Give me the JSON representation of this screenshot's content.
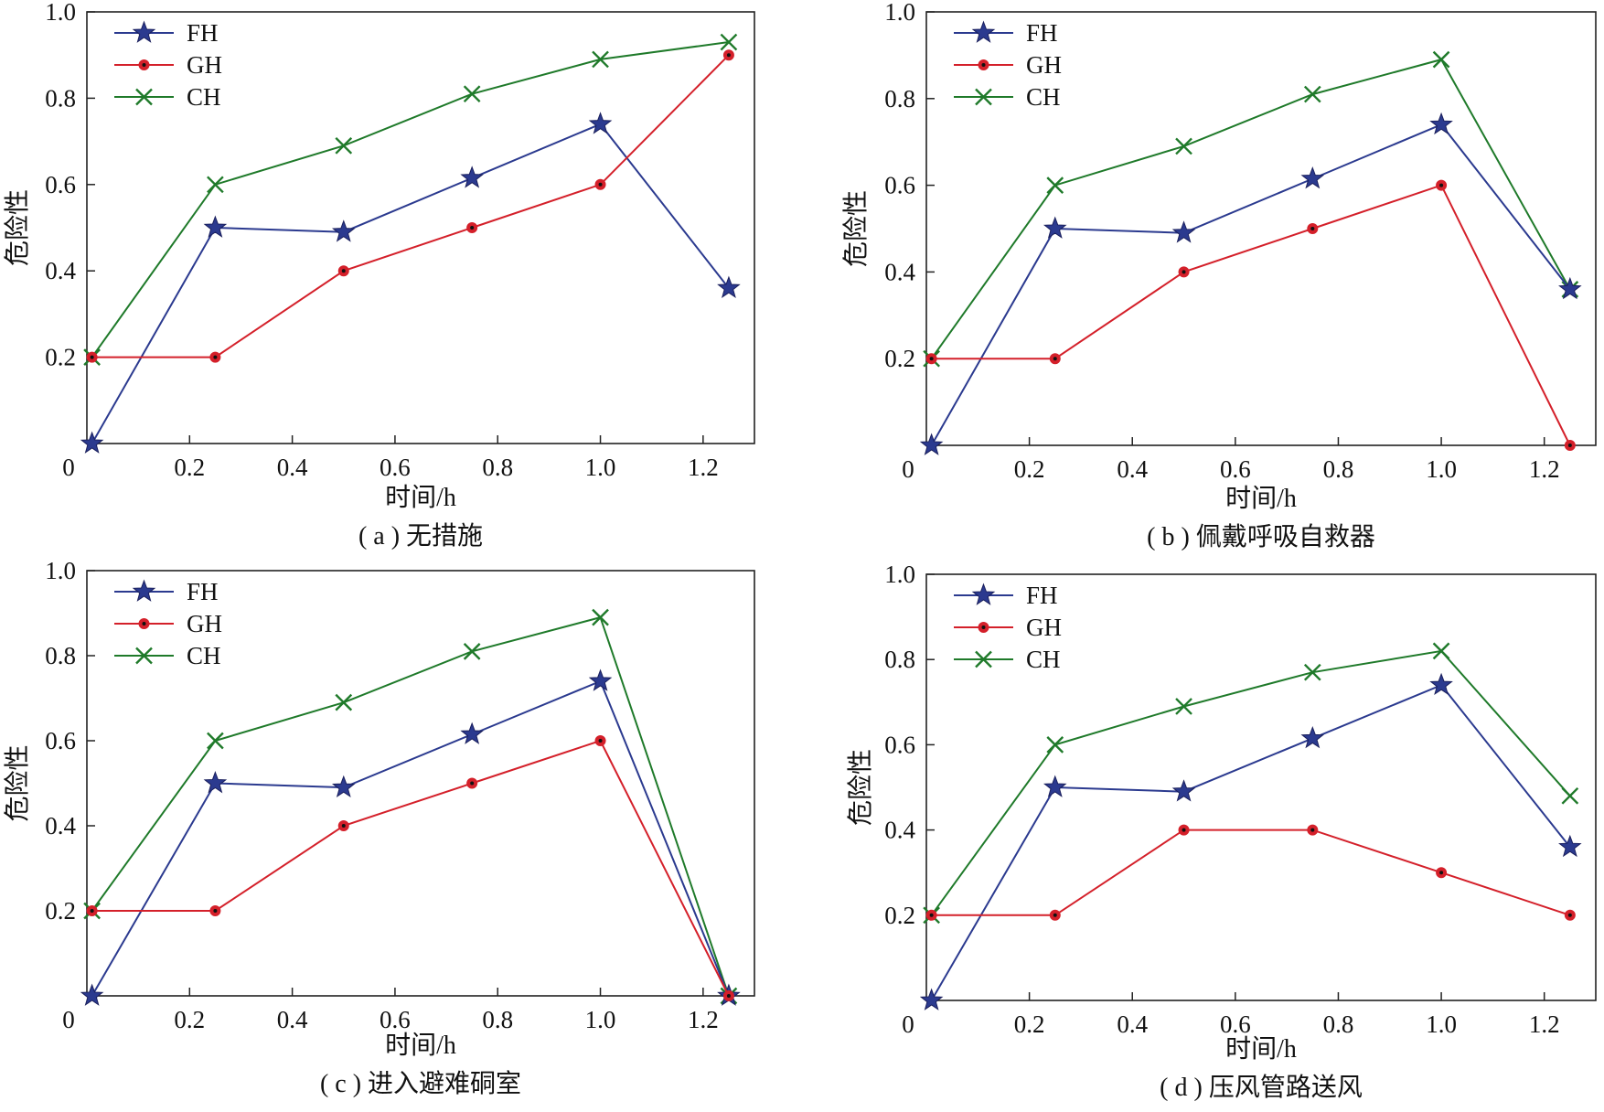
{
  "chart_data": [
    {
      "type": "line",
      "caption": "( a ) 无措施",
      "xlabel": "时间/h",
      "ylabel": "危险性",
      "xlim": [
        0,
        1.3
      ],
      "ylim": [
        0,
        1.0
      ],
      "xticks": [
        "0",
        "0.2",
        "0.4",
        "0.6",
        "0.8",
        "1.0",
        "1.2"
      ],
      "yticks": [
        "0.2",
        "0.4",
        "0.6",
        "0.8",
        "1.0"
      ],
      "legend_position": "top-left",
      "x": [
        0,
        0.25,
        0.5,
        0.75,
        1.0,
        1.25
      ],
      "series": [
        {
          "name": "FH",
          "values": [
            0.0,
            0.5,
            0.49,
            0.615,
            0.74,
            0.36
          ]
        },
        {
          "name": "GH",
          "values": [
            0.2,
            0.2,
            0.4,
            0.5,
            0.6,
            0.9
          ]
        },
        {
          "name": "CH",
          "values": [
            0.2,
            0.6,
            0.69,
            0.81,
            0.89,
            0.93
          ]
        }
      ]
    },
    {
      "type": "line",
      "caption": "( b ) 佩戴呼吸自救器",
      "xlabel": "时间/h",
      "ylabel": "危险性",
      "xlim": [
        0,
        1.3
      ],
      "ylim": [
        0,
        1.0
      ],
      "xticks": [
        "0",
        "0.2",
        "0.4",
        "0.6",
        "0.8",
        "1.0",
        "1.2"
      ],
      "yticks": [
        "0.2",
        "0.4",
        "0.6",
        "0.8",
        "1.0"
      ],
      "legend_position": "top-left",
      "x": [
        0,
        0.25,
        0.5,
        0.75,
        1.0,
        1.25
      ],
      "series": [
        {
          "name": "FH",
          "values": [
            0.0,
            0.5,
            0.49,
            0.615,
            0.74,
            0.36
          ]
        },
        {
          "name": "GH",
          "values": [
            0.2,
            0.2,
            0.4,
            0.5,
            0.6,
            0.0
          ]
        },
        {
          "name": "CH",
          "values": [
            0.2,
            0.6,
            0.69,
            0.81,
            0.89,
            0.36
          ]
        }
      ]
    },
    {
      "type": "line",
      "caption": "( c ) 进入避难硐室",
      "xlabel": "时间/h",
      "ylabel": "危险性",
      "xlim": [
        0,
        1.3
      ],
      "ylim": [
        0,
        1.0
      ],
      "xticks": [
        "0",
        "0.2",
        "0.4",
        "0.6",
        "0.8",
        "1.0",
        "1.2"
      ],
      "yticks": [
        "0.2",
        "0.4",
        "0.6",
        "0.8",
        "1.0"
      ],
      "legend_position": "top-left",
      "x": [
        0,
        0.25,
        0.5,
        0.75,
        1.0,
        1.25
      ],
      "series": [
        {
          "name": "FH",
          "values": [
            0.0,
            0.5,
            0.49,
            0.615,
            0.74,
            0.0
          ]
        },
        {
          "name": "GH",
          "values": [
            0.2,
            0.2,
            0.4,
            0.5,
            0.6,
            0.0
          ]
        },
        {
          "name": "CH",
          "values": [
            0.2,
            0.6,
            0.69,
            0.81,
            0.89,
            0.0
          ]
        }
      ]
    },
    {
      "type": "line",
      "caption": "( d ) 压风管路送风",
      "xlabel": "时间/h",
      "ylabel": "危险性",
      "xlim": [
        0,
        1.3
      ],
      "ylim": [
        0,
        1.0
      ],
      "xticks": [
        "0",
        "0.2",
        "0.4",
        "0.6",
        "0.8",
        "1.0",
        "1.2"
      ],
      "yticks": [
        "0.2",
        "0.4",
        "0.6",
        "0.8",
        "1.0"
      ],
      "legend_position": "top-left",
      "x": [
        0,
        0.25,
        0.5,
        0.75,
        1.0,
        1.25
      ],
      "series": [
        {
          "name": "FH",
          "values": [
            0.0,
            0.5,
            0.49,
            0.615,
            0.74,
            0.36
          ]
        },
        {
          "name": "GH",
          "values": [
            0.2,
            0.2,
            0.4,
            0.4,
            0.3,
            0.2
          ]
        },
        {
          "name": "CH",
          "values": [
            0.2,
            0.6,
            0.69,
            0.77,
            0.82,
            0.48
          ]
        }
      ]
    }
  ],
  "colors": {
    "FH": "#2b3a8f",
    "GH": "#d4202a",
    "CH": "#1f7a2a"
  },
  "markers": {
    "FH": "star",
    "GH": "filled-circle",
    "CH": "x-cross"
  }
}
